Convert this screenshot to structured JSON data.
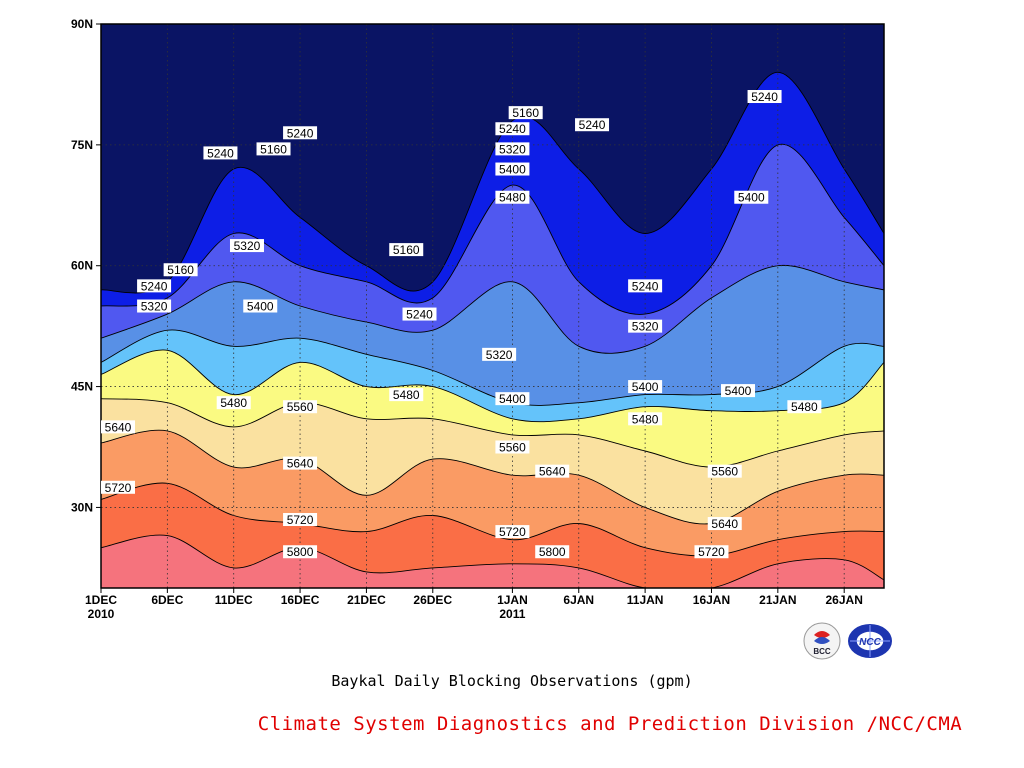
{
  "chart_data": {
    "type": "heatmap",
    "subtype": "filled-contour time-latitude section",
    "title": "Baykal Daily Blocking Observations (gpm)",
    "xlabel": "",
    "ylabel": "",
    "x_ticks": [
      {
        "label": "1DEC",
        "sub": "2010",
        "day": 0
      },
      {
        "label": "6DEC",
        "sub": "",
        "day": 5
      },
      {
        "label": "11DEC",
        "sub": "",
        "day": 10
      },
      {
        "label": "16DEC",
        "sub": "",
        "day": 15
      },
      {
        "label": "21DEC",
        "sub": "",
        "day": 20
      },
      {
        "label": "26DEC",
        "sub": "",
        "day": 25
      },
      {
        "label": "1JAN",
        "sub": "2011",
        "day": 31
      },
      {
        "label": "6JAN",
        "sub": "",
        "day": 36
      },
      {
        "label": "11JAN",
        "sub": "",
        "day": 41
      },
      {
        "label": "16JAN",
        "sub": "",
        "day": 46
      },
      {
        "label": "21JAN",
        "sub": "",
        "day": 51
      },
      {
        "label": "26JAN",
        "sub": "",
        "day": 56
      }
    ],
    "x_range_days": [
      0,
      59
    ],
    "y_ticks": [
      {
        "label": "30N",
        "lat": 30
      },
      {
        "label": "45N",
        "lat": 45
      },
      {
        "label": "60N",
        "lat": 60
      },
      {
        "label": "75N",
        "lat": 75
      },
      {
        "label": "90N",
        "lat": 90
      }
    ],
    "ylim": [
      20,
      90
    ],
    "grid": "dotted at tick positions",
    "levels": [
      5160,
      5240,
      5320,
      5400,
      5480,
      5560,
      5640,
      5720,
      5800
    ],
    "level_colors": [
      "#0a1464",
      "#0d1ee6",
      "#5058f0",
      "#5890e6",
      "#64c3fa",
      "#fafa82",
      "#fae1a0",
      "#fa9b64",
      "#fa6e46",
      "#f5737d"
    ],
    "boundaries": [
      {
        "level": 5800,
        "pts": [
          [
            0,
            25
          ],
          [
            5,
            26.5
          ],
          [
            10,
            22.5
          ],
          [
            15,
            25
          ],
          [
            20,
            22
          ],
          [
            25,
            22.5
          ],
          [
            31,
            23
          ],
          [
            36,
            22.5
          ],
          [
            41,
            20
          ],
          [
            46,
            20
          ],
          [
            51,
            23
          ],
          [
            56,
            23.5
          ],
          [
            59,
            21
          ]
        ]
      },
      {
        "level": 5720,
        "pts": [
          [
            0,
            31
          ],
          [
            5,
            33
          ],
          [
            10,
            29
          ],
          [
            15,
            28
          ],
          [
            20,
            27
          ],
          [
            25,
            29
          ],
          [
            31,
            26
          ],
          [
            36,
            28
          ],
          [
            41,
            25
          ],
          [
            46,
            24
          ],
          [
            51,
            26
          ],
          [
            56,
            27
          ],
          [
            59,
            27
          ]
        ]
      },
      {
        "level": 5640,
        "pts": [
          [
            0,
            38
          ],
          [
            5,
            39.5
          ],
          [
            10,
            35
          ],
          [
            15,
            36
          ],
          [
            20,
            31.5
          ],
          [
            25,
            36
          ],
          [
            31,
            34
          ],
          [
            36,
            34
          ],
          [
            41,
            30
          ],
          [
            46,
            28
          ],
          [
            51,
            32
          ],
          [
            56,
            34
          ],
          [
            59,
            34
          ]
        ]
      },
      {
        "level": 5560,
        "pts": [
          [
            0,
            43.5
          ],
          [
            5,
            43
          ],
          [
            10,
            40
          ],
          [
            15,
            43
          ],
          [
            20,
            41
          ],
          [
            25,
            41
          ],
          [
            31,
            39
          ],
          [
            36,
            39
          ],
          [
            41,
            37
          ],
          [
            46,
            35
          ],
          [
            51,
            37
          ],
          [
            56,
            39
          ],
          [
            59,
            39.5
          ]
        ]
      },
      {
        "level": 5480,
        "pts": [
          [
            0,
            46.5
          ],
          [
            5,
            49.5
          ],
          [
            10,
            44
          ],
          [
            15,
            48
          ],
          [
            20,
            45
          ],
          [
            25,
            45
          ],
          [
            31,
            41
          ],
          [
            36,
            41
          ],
          [
            41,
            42.5
          ],
          [
            46,
            42
          ],
          [
            51,
            42
          ],
          [
            56,
            43
          ],
          [
            59,
            48
          ]
        ]
      },
      {
        "level": 5400,
        "pts": [
          [
            0,
            48
          ],
          [
            5,
            52
          ],
          [
            10,
            50
          ],
          [
            15,
            51
          ],
          [
            20,
            49
          ],
          [
            25,
            47
          ],
          [
            31,
            43
          ],
          [
            36,
            43
          ],
          [
            41,
            44
          ],
          [
            46,
            44
          ],
          [
            51,
            45
          ],
          [
            56,
            50
          ],
          [
            59,
            50
          ]
        ]
      },
      {
        "level": 5320,
        "pts": [
          [
            0,
            51
          ],
          [
            5,
            54
          ],
          [
            10,
            58
          ],
          [
            15,
            55
          ],
          [
            20,
            53
          ],
          [
            25,
            52
          ],
          [
            31,
            58
          ],
          [
            36,
            50
          ],
          [
            41,
            50
          ],
          [
            46,
            56
          ],
          [
            51,
            60
          ],
          [
            56,
            58
          ],
          [
            59,
            57
          ]
        ]
      },
      {
        "level": 5240,
        "pts": [
          [
            0,
            55
          ],
          [
            5,
            56
          ],
          [
            10,
            64
          ],
          [
            15,
            60
          ],
          [
            20,
            58
          ],
          [
            25,
            56
          ],
          [
            31,
            70
          ],
          [
            36,
            58
          ],
          [
            41,
            54
          ],
          [
            46,
            60
          ],
          [
            51,
            75
          ],
          [
            56,
            66
          ],
          [
            59,
            60
          ]
        ]
      },
      {
        "level": 5160,
        "pts": [
          [
            0,
            57
          ],
          [
            5,
            58
          ],
          [
            10,
            72
          ],
          [
            15,
            66
          ],
          [
            20,
            60
          ],
          [
            25,
            58
          ],
          [
            31,
            78
          ],
          [
            36,
            72
          ],
          [
            41,
            64
          ],
          [
            46,
            72
          ],
          [
            51,
            84
          ],
          [
            56,
            72
          ],
          [
            59,
            64
          ]
        ]
      }
    ],
    "contour_labels": [
      {
        "value": "5160",
        "day": 6,
        "lat": 59.5
      },
      {
        "value": "5240",
        "day": 4,
        "lat": 57.5
      },
      {
        "value": "5320",
        "day": 4,
        "lat": 55
      },
      {
        "value": "5240",
        "day": 9,
        "lat": 74
      },
      {
        "value": "5160",
        "day": 13,
        "lat": 74.5
      },
      {
        "value": "5240",
        "day": 15,
        "lat": 76.5
      },
      {
        "value": "5320",
        "day": 11,
        "lat": 62.5
      },
      {
        "value": "5400",
        "day": 12,
        "lat": 55
      },
      {
        "value": "5480",
        "day": 10,
        "lat": 43
      },
      {
        "value": "5560",
        "day": 15,
        "lat": 42.5
      },
      {
        "value": "5640",
        "day": 15,
        "lat": 35.5
      },
      {
        "value": "5720",
        "day": 15,
        "lat": 28.5
      },
      {
        "value": "5800",
        "day": 15,
        "lat": 24.5
      },
      {
        "value": "5160",
        "day": 23,
        "lat": 62
      },
      {
        "value": "5240",
        "day": 24,
        "lat": 54
      },
      {
        "value": "5480",
        "day": 23,
        "lat": 44
      },
      {
        "value": "5640",
        "day": 0,
        "lat": 40
      },
      {
        "value": "5720",
        "day": 0,
        "lat": 32.5
      },
      {
        "value": "5160",
        "day": 32,
        "lat": 79
      },
      {
        "value": "5240",
        "day": 31,
        "lat": 77
      },
      {
        "value": "5320",
        "day": 31,
        "lat": 74.5
      },
      {
        "value": "5400",
        "day": 31,
        "lat": 72
      },
      {
        "value": "5480",
        "day": 31,
        "lat": 68.5
      },
      {
        "value": "5320",
        "day": 30,
        "lat": 49
      },
      {
        "value": "5400",
        "day": 31,
        "lat": 43.5
      },
      {
        "value": "5560",
        "day": 31,
        "lat": 37.5
      },
      {
        "value": "5640",
        "day": 34,
        "lat": 34.5
      },
      {
        "value": "5720",
        "day": 31,
        "lat": 27
      },
      {
        "value": "5800",
        "day": 34,
        "lat": 24.5
      },
      {
        "value": "5240",
        "day": 37,
        "lat": 77.5
      },
      {
        "value": "5240",
        "day": 41,
        "lat": 57.5
      },
      {
        "value": "5320",
        "day": 41,
        "lat": 52.5
      },
      {
        "value": "5400",
        "day": 41,
        "lat": 45
      },
      {
        "value": "5480",
        "day": 41,
        "lat": 41
      },
      {
        "value": "5560",
        "day": 47,
        "lat": 34.5
      },
      {
        "value": "5640",
        "day": 47,
        "lat": 28
      },
      {
        "value": "5720",
        "day": 46,
        "lat": 24.5
      },
      {
        "value": "5240",
        "day": 50,
        "lat": 81
      },
      {
        "value": "5400",
        "day": 49,
        "lat": 68.5
      },
      {
        "value": "5400",
        "day": 48,
        "lat": 44.5
      },
      {
        "value": "5480",
        "day": 53,
        "lat": 42.5
      }
    ]
  },
  "caption": "Baykal Daily Blocking Observations (gpm)",
  "credit": "Climate System Diagnostics and Prediction Division /NCC/CMA",
  "logos": {
    "left_text": "BCC",
    "right_text": "NCC"
  },
  "colors": {
    "frame": "#000000",
    "credit": "#e00000"
  }
}
